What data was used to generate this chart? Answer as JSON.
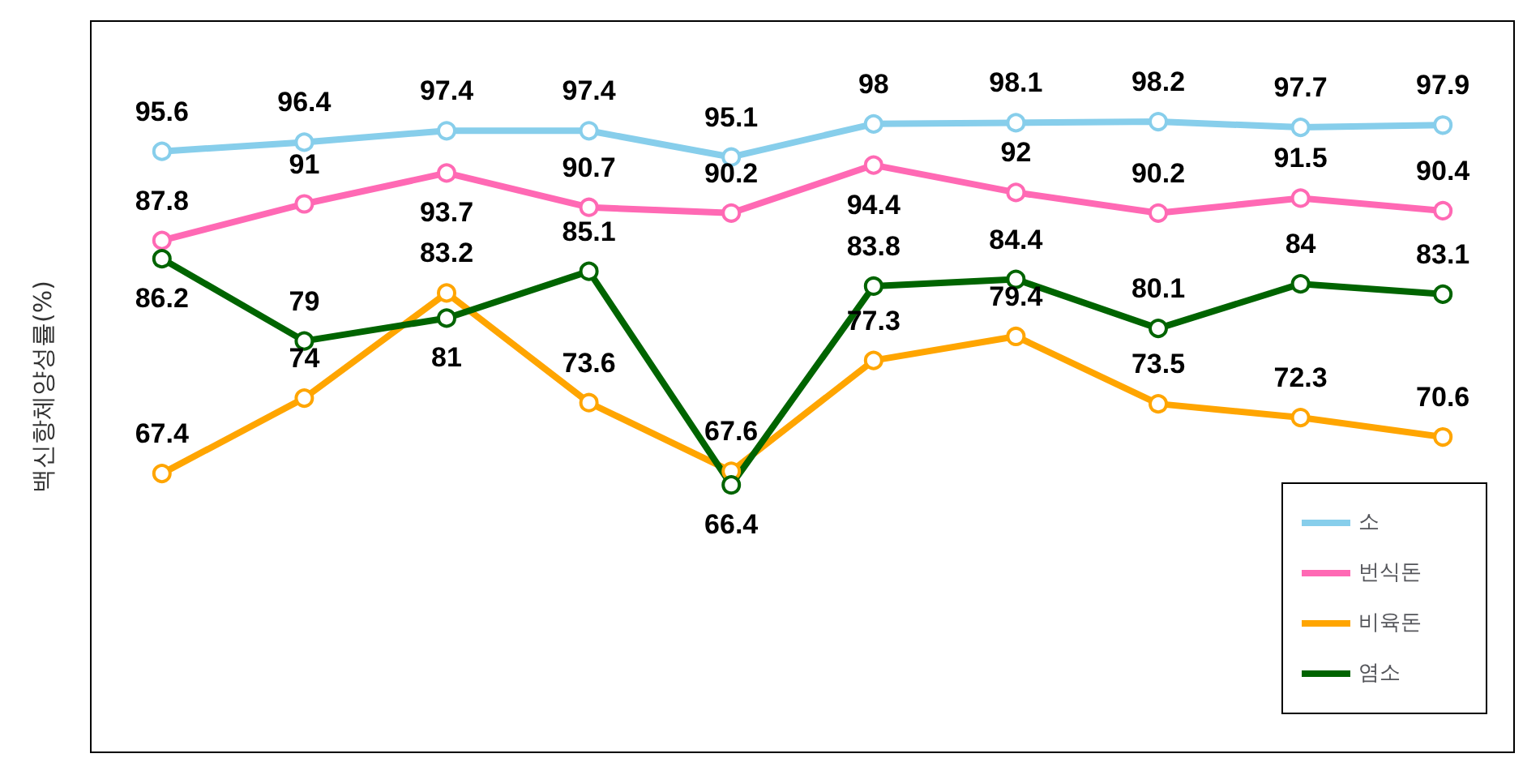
{
  "chart_data": {
    "type": "line",
    "ylabel": "백신항체양성률(%)",
    "categories": [
      null,
      null,
      null,
      null,
      null,
      null,
      null,
      null,
      null,
      null
    ],
    "series": [
      {
        "name": "소",
        "color": "#87ceeb",
        "values": [
          95.6,
          96.4,
          97.4,
          97.4,
          95.1,
          98,
          98.1,
          98.2,
          97.7,
          97.9
        ]
      },
      {
        "name": "번식돈",
        "color": "#ff69b4",
        "values": [
          87.8,
          91,
          93.7,
          90.7,
          90.2,
          94.4,
          92,
          90.2,
          91.5,
          90.4
        ]
      },
      {
        "name": "비육돈",
        "color": "#ffa500",
        "values": [
          67.4,
          74,
          83.2,
          73.6,
          67.6,
          77.3,
          79.4,
          73.5,
          72.3,
          70.6
        ]
      },
      {
        "name": "염소",
        "color": "#006400",
        "values": [
          86.2,
          79,
          81,
          85.1,
          66.4,
          83.8,
          84.4,
          80.1,
          84,
          83.1
        ]
      }
    ],
    "ylim": [
      43,
      107
    ],
    "tick_labels": false,
    "data_labels": true,
    "grid": false,
    "legend": "bottom right",
    "marker": "circle",
    "line_style": "solid"
  }
}
